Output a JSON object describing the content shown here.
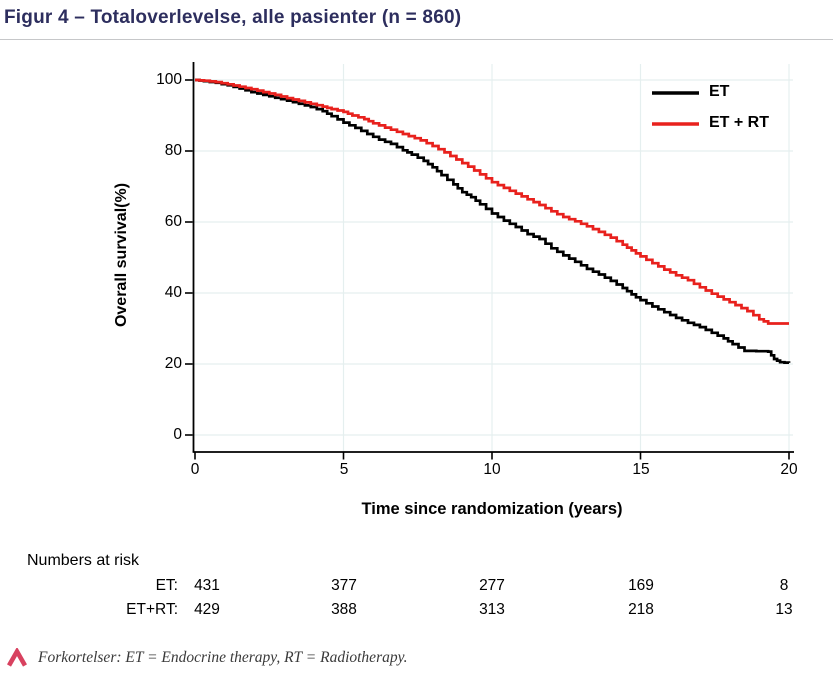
{
  "chart_data": {
    "type": "line",
    "variant": "kaplan_meier_step",
    "title": "Figur 4 – Totaloverlevelse, alle pasienter (n = 860)",
    "title_color": "#2d2e5e",
    "xlabel": "Time since randomization (years)",
    "ylabel": "Overall survival(%)",
    "xlim": [
      0,
      20
    ],
    "ylim": [
      0,
      100
    ],
    "xticks": [
      0,
      5,
      10,
      15,
      20
    ],
    "yticks": [
      0,
      20,
      40,
      60,
      80,
      100
    ],
    "grid": true,
    "gridline_color": "#e5efef",
    "legend": {
      "position": "top-right",
      "entries": [
        {
          "label": "ET",
          "color": "#000000"
        },
        {
          "label": "ET + RT",
          "color": "#e8211d"
        }
      ]
    },
    "series": [
      {
        "name": "ET",
        "color": "#000000",
        "x": [
          0,
          0.3,
          0.7,
          1.1,
          1.5,
          1.9,
          2.3,
          2.7,
          3.1,
          3.5,
          3.9,
          4.3,
          4.6,
          5,
          5.4,
          5.8,
          6.2,
          6.6,
          7,
          7.3,
          7.7,
          8,
          8.3,
          8.7,
          9,
          9.3,
          9.6,
          10,
          10.4,
          10.8,
          11.2,
          11.6,
          12,
          12.4,
          12.8,
          13.2,
          13.6,
          14,
          14.4,
          14.7,
          15,
          15.4,
          15.8,
          16.2,
          16.6,
          17,
          17.4,
          17.8,
          18.1,
          18.5,
          19.3,
          19.5,
          19.7,
          20
        ],
        "y": [
          100,
          99.7,
          99.2,
          98.5,
          97.6,
          96.6,
          95.8,
          95,
          94.2,
          93.3,
          92.4,
          91.2,
          89.8,
          88,
          86.5,
          84.8,
          83.2,
          82,
          80.2,
          79,
          77.2,
          75.4,
          73.2,
          70.6,
          68.4,
          67,
          65,
          62.4,
          60.4,
          58.6,
          56.6,
          55.2,
          52.6,
          50.6,
          48.8,
          46.8,
          45.2,
          43.4,
          41.4,
          39.6,
          38,
          36.2,
          34.6,
          33,
          31.6,
          30.4,
          28.8,
          27.2,
          25.6,
          23.7,
          23.5,
          21.4,
          20.5,
          20.3
        ]
      },
      {
        "name": "ET + RT",
        "color": "#e8211d",
        "x": [
          0,
          0.3,
          0.7,
          1.1,
          1.5,
          1.9,
          2.3,
          2.7,
          3.1,
          3.5,
          3.9,
          4.3,
          4.6,
          5,
          5.3,
          5.7,
          6,
          6.4,
          6.8,
          7.2,
          7.6,
          8,
          8.4,
          8.8,
          9.2,
          9.6,
          10,
          10.4,
          10.8,
          11.2,
          11.6,
          12,
          12.4,
          12.8,
          13.2,
          13.6,
          14,
          14.4,
          14.7,
          15,
          15.4,
          15.8,
          16.2,
          16.6,
          17,
          17.4,
          17.8,
          18.2,
          18.6,
          19,
          19.3,
          20
        ],
        "y": [
          100,
          99.8,
          99.4,
          98.8,
          98.1,
          97.4,
          96.6,
          95.8,
          94.9,
          94.1,
          93.3,
          92.5,
          91.8,
          91,
          90,
          89,
          87.8,
          86.6,
          85.4,
          84.2,
          83,
          81.4,
          79.6,
          77.6,
          75.6,
          73.4,
          71.2,
          69.6,
          68,
          66.4,
          64.8,
          63,
          61.4,
          60.2,
          58.8,
          57.2,
          55.6,
          53.6,
          52,
          50.3,
          48.4,
          46.6,
          45,
          43.6,
          41.6,
          39.8,
          38.2,
          36.6,
          34.9,
          32.6,
          31.4,
          31.4
        ]
      }
    ],
    "numbers_at_risk": {
      "heading": "Numbers at risk",
      "times": [
        0,
        5,
        10,
        15,
        20
      ],
      "rows": [
        {
          "label": "ET:",
          "values": [
            "431",
            "377",
            "277",
            "169",
            "8"
          ]
        },
        {
          "label": "ET+RT:",
          "values": [
            "429",
            "388",
            "313",
            "218",
            "13"
          ]
        }
      ]
    }
  },
  "footer": {
    "text": "Forkortelser: ET = Endocrine therapy, RT = Radiotherapy.",
    "icon_color": "#d8415f"
  }
}
